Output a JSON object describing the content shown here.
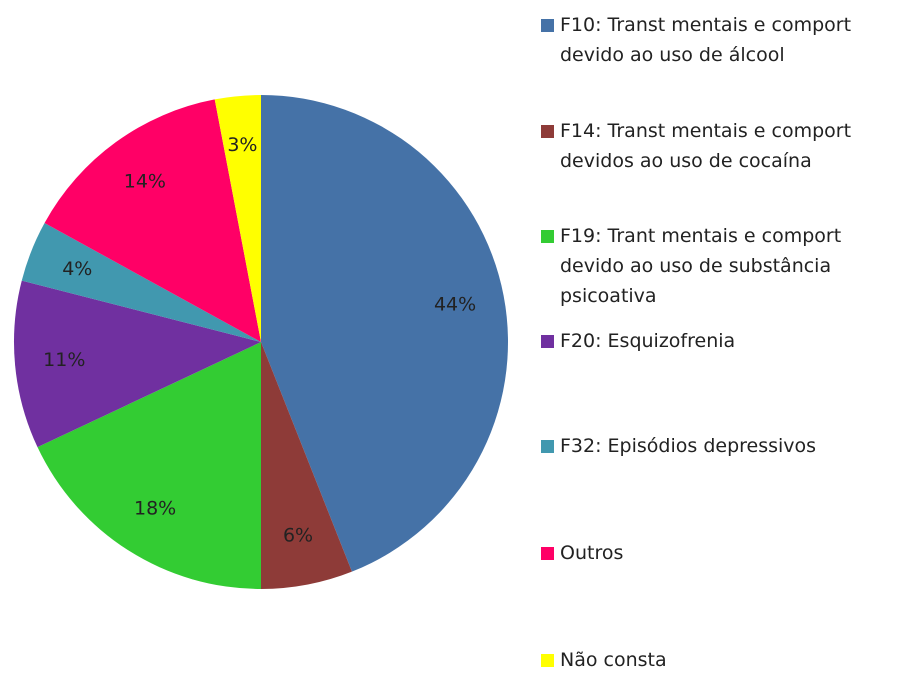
{
  "chart_data": {
    "type": "pie",
    "categories": [
      "F10: Transt mentais e comport devido ao uso de álcool",
      "F14: Transt mentais e comport devidos ao uso de cocaína",
      "F19: Trant mentais e comport devido ao uso de substância psicoativa",
      "F20: Esquizofrenia",
      "F32: Episódios depressivos",
      "Outros",
      "Não consta"
    ],
    "values": [
      44,
      6,
      18,
      11,
      4,
      14,
      3
    ],
    "value_labels": [
      "44%",
      "6%",
      "18%",
      "11%",
      "4%",
      "14%",
      "3%"
    ],
    "colors": [
      "#4572a7",
      "#8e3b38",
      "#33cc33",
      "#7030a0",
      "#4198af",
      "#ff0066",
      "#ffff00"
    ]
  }
}
